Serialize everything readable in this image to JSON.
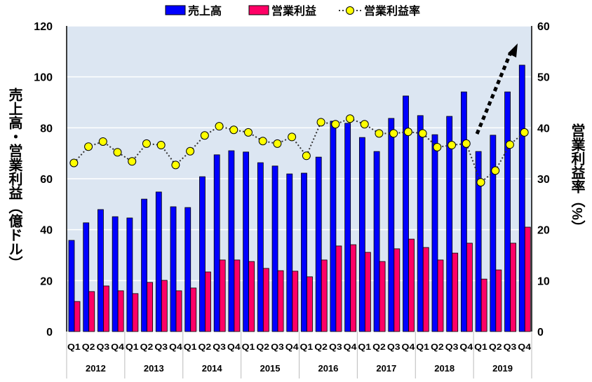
{
  "chart_data": {
    "type": "bar+line",
    "legend": [
      "売上高",
      "営業利益",
      "営業利益率"
    ],
    "legend_position": "top",
    "ylabel": "売上高・営業利益（億ドル）",
    "y2label": "営業利益率（%）",
    "ylim": [
      0,
      120
    ],
    "yticks": [
      0,
      20,
      40,
      60,
      80,
      100,
      120
    ],
    "y2lim": [
      0,
      60
    ],
    "y2ticks": [
      0,
      10,
      20,
      30,
      40,
      50,
      60
    ],
    "years": [
      "2012",
      "2013",
      "2014",
      "2015",
      "2016",
      "2017",
      "2018",
      "2019"
    ],
    "quarters": [
      "Q1",
      "Q2",
      "Q3",
      "Q4"
    ],
    "series": [
      {
        "name": "売上高",
        "color": "#0000ff",
        "values": [
          35.8,
          42.7,
          47.9,
          45.1,
          44.6,
          52.0,
          54.8,
          49.0,
          48.7,
          60.8,
          69.4,
          71.0,
          70.5,
          66.3,
          65.0,
          61.9,
          62.2,
          68.5,
          82.6,
          81.8,
          76.2,
          70.7,
          83.7,
          92.5,
          84.8,
          77.3,
          84.5,
          94.1,
          70.7,
          77.1,
          94.1,
          104.6
        ]
      },
      {
        "name": "営業利益",
        "color": "#ff0066",
        "values": [
          11.8,
          15.7,
          17.9,
          16.0,
          14.9,
          19.3,
          20.1,
          16.0,
          17.1,
          23.4,
          28.1,
          28.1,
          27.5,
          24.8,
          23.9,
          23.7,
          21.5,
          28.1,
          33.6,
          34.1,
          31.1,
          27.5,
          32.5,
          36.3,
          33.0,
          28.1,
          30.8,
          34.7,
          20.6,
          24.2,
          34.7,
          41.0
        ]
      },
      {
        "name": "営業利益率",
        "color": "#ffff00",
        "axis": "right",
        "values": [
          33.1,
          36.3,
          37.3,
          35.2,
          33.4,
          36.9,
          36.6,
          32.7,
          35.4,
          38.5,
          40.3,
          39.6,
          39.1,
          37.4,
          36.9,
          38.2,
          34.5,
          41.1,
          40.7,
          41.8,
          40.7,
          38.9,
          38.9,
          39.2,
          38.9,
          36.2,
          36.6,
          36.9,
          29.3,
          31.6,
          36.7,
          39.1
        ]
      }
    ],
    "annotation": "upward dashed arrow over 2019"
  }
}
